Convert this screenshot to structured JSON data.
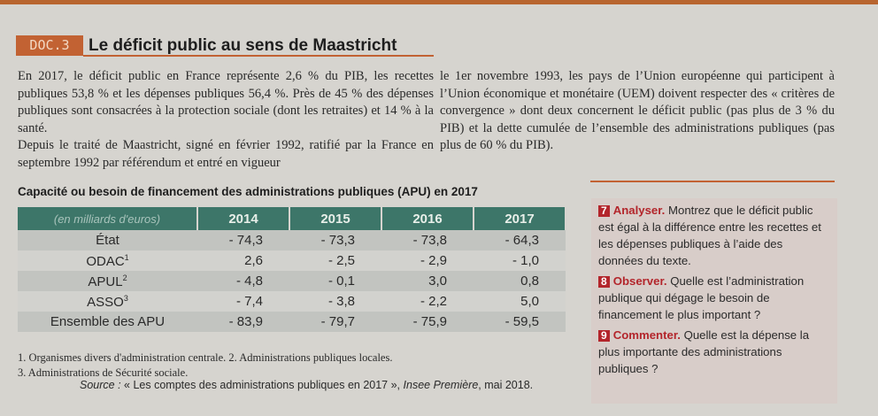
{
  "doc": {
    "badge": "DOC.3",
    "title": "Le déficit public au sens de Maastricht",
    "left_paragraphs": [
      "En 2017, le déficit public en France représente 2,6 % du PIB, les recettes publiques 53,8 % et les dépenses publiques 56,4 %. Près de 45 % des dépenses publiques sont consacrées à la protection sociale (dont les retraites) et 14 % à la santé.",
      "Depuis le traité de Maastricht, signé en février 1992, ratifié par la France en septembre 1992 par référendum et entré en vigueur"
    ],
    "right_paragraph": "le 1er novembre 1993, les pays de l’Union européenne qui participent à l’Union économique et monétaire (UEM) doivent respecter des « critères de convergence » dont deux concernent le déficit public (pas plus de 3 % du PIB) et la dette cumulée de l’ensemble des administrations publiques (pas plus de 60 % du PIB)."
  },
  "table": {
    "title": "Capacité ou besoin de financement des administrations publiques (APU) en 2017",
    "unit": "(en milliards d'euros)",
    "columns": [
      "2014",
      "2015",
      "2016",
      "2017"
    ],
    "rows": [
      {
        "label": "État",
        "sup": "",
        "values": [
          "- 74,3",
          "- 73,3",
          "- 73,8",
          "- 64,3"
        ]
      },
      {
        "label": "ODAC",
        "sup": "1",
        "values": [
          "2,6",
          "- 2,5",
          "- 2,9",
          "- 1,0"
        ]
      },
      {
        "label": "APUL",
        "sup": "2",
        "values": [
          "- 4,8",
          "- 0,1",
          "3,0",
          "0,8"
        ]
      },
      {
        "label": "ASSO",
        "sup": "3",
        "values": [
          "- 7,4",
          "- 3,8",
          "- 2,2",
          "5,0"
        ]
      },
      {
        "label": "Ensemble des APU",
        "sup": "",
        "values": [
          "- 83,9",
          "- 79,7",
          "- 75,9",
          "- 59,5"
        ]
      }
    ],
    "notes": [
      "1. Organismes divers d'administration centrale. 2. Administrations publiques locales.",
      "3. Administrations de Sécurité sociale."
    ],
    "source_label": "Source :",
    "source_text": " « Les comptes des administrations publiques en 2017 », ",
    "source_pub": "Insee Première",
    "source_date": ", mai 2018."
  },
  "questions": [
    {
      "num": "7",
      "verb": "Analyser.",
      "text": " Montrez que le déficit public est égal à la différence entre les recettes et les dépenses publiques à l’aide des données du texte."
    },
    {
      "num": "8",
      "verb": "Observer.",
      "text": " Quelle est l’administration publique qui dégage le besoin de financement le plus important ?"
    },
    {
      "num": "9",
      "verb": "Commenter.",
      "text": " Quelle est la dépense la plus importante des administrations publiques ?"
    }
  ],
  "colors": {
    "accent": "#c26233",
    "table_header": "#3d7669",
    "question_red": "#b3252b"
  }
}
